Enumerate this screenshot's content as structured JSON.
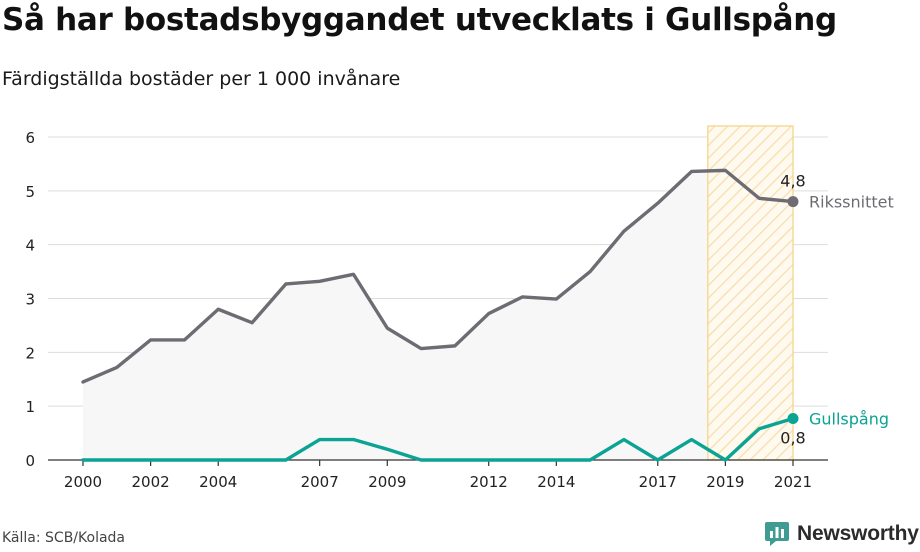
{
  "title": "Så har bostadsbyggandet utvecklats i Gullspång",
  "subtitle": "Färdigställda bostäder per 1 000 invånare",
  "source": "Källa: SCB/Kolada",
  "brand": {
    "name": "Newsworthy",
    "icon": "newsworthy-logo-icon"
  },
  "colors": {
    "national": "#6e6c72",
    "local": "#0aa394",
    "area_fill": "#f7f7f8",
    "highlight_stroke": "#f5d58a",
    "highlight_hatch": "#f8e2b4",
    "grid": "#dddddd"
  },
  "chart_data": {
    "type": "line",
    "x": [
      2000,
      2001,
      2002,
      2003,
      2004,
      2005,
      2006,
      2007,
      2008,
      2009,
      2010,
      2011,
      2012,
      2013,
      2014,
      2015,
      2016,
      2017,
      2018,
      2019,
      2020,
      2021
    ],
    "x_ticks": [
      "2000",
      "2002",
      "2004",
      "2007",
      "2009",
      "2012",
      "2014",
      "2017",
      "2019",
      "2021"
    ],
    "y_ticks": [
      "0",
      "1",
      "2",
      "3",
      "4",
      "5",
      "6"
    ],
    "ylim": [
      0,
      6
    ],
    "grid": true,
    "highlight_range": [
      2019,
      2021
    ],
    "series": [
      {
        "name": "Rikssnittet",
        "values": [
          1.45,
          1.72,
          2.23,
          2.23,
          2.8,
          2.55,
          3.27,
          3.32,
          3.45,
          2.45,
          2.07,
          2.12,
          2.72,
          3.03,
          2.99,
          3.5,
          4.25,
          4.77,
          5.36,
          5.38,
          4.86,
          4.8
        ],
        "end_label": "4,8",
        "area_fill": true
      },
      {
        "name": "Gullspång",
        "values": [
          0,
          0,
          0,
          0,
          0,
          0,
          0,
          0.38,
          0.38,
          0.2,
          0,
          0,
          0,
          0,
          0,
          0,
          0.38,
          0,
          0.38,
          0,
          0.58,
          0.77
        ],
        "end_label": "0,8",
        "area_fill": false
      }
    ]
  }
}
